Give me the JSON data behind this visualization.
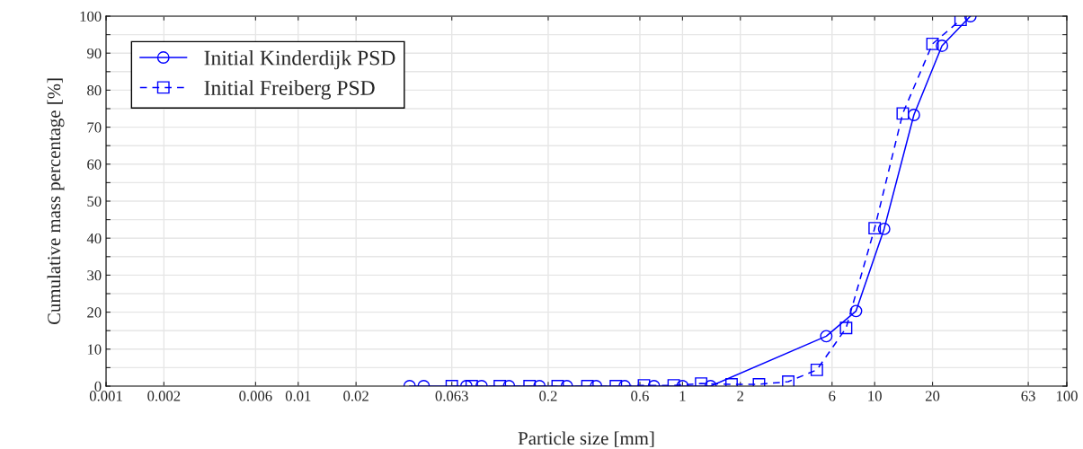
{
  "chart_data": {
    "type": "line",
    "xlabel": "Particle size [mm]",
    "ylabel": "Cumulative mass percentage [%]",
    "log": "x",
    "grid": true,
    "legend": "top left",
    "xlim": [
      0.001,
      100
    ],
    "xticks": [
      0.001,
      0.002,
      0.006,
      0.01,
      0.02,
      0.063,
      0.2,
      0.6,
      1,
      2,
      6,
      10,
      20,
      63,
      100
    ],
    "ylim": [
      0,
      100
    ],
    "yticks": [
      0,
      {
        "value": 5,
        "label": null
      },
      10,
      {
        "value": 15,
        "label": null
      },
      20,
      {
        "value": 25,
        "label": null
      },
      30,
      {
        "value": 35,
        "label": null
      },
      40,
      {
        "value": 45,
        "label": null
      },
      50,
      {
        "value": 55,
        "label": null
      },
      60,
      {
        "value": 65,
        "label": null
      },
      70,
      {
        "value": 75,
        "label": null
      },
      80,
      {
        "value": 85,
        "label": null
      },
      90,
      {
        "value": 95,
        "label": null
      },
      100
    ],
    "series": [
      {
        "name": "Initial Kinderdijk PSD",
        "color": "#0000ff",
        "marker": "circle",
        "line_style": "solid",
        "x": [
          0.038,
          0.045,
          0.075,
          0.09,
          0.125,
          0.18,
          0.25,
          0.355,
          0.5,
          0.71,
          1,
          1.4,
          5.6,
          8,
          11.2,
          16,
          22.4,
          31.5
        ],
        "values": [
          0,
          0,
          0,
          0,
          0,
          0,
          0,
          0,
          0,
          0,
          0,
          0,
          13.5,
          20.3,
          42.5,
          73.3,
          92,
          100
        ]
      },
      {
        "name": "Initial Freiberg PSD",
        "color": "#0000ff",
        "marker": "square",
        "line_style": "dashed",
        "x": [
          0.063,
          0.08,
          0.112,
          0.16,
          0.224,
          0.32,
          0.45,
          0.63,
          0.9,
          1.25,
          1.8,
          2.5,
          3.55,
          5,
          7.1,
          10,
          14,
          20,
          28
        ],
        "values": [
          0,
          0,
          0,
          0,
          0,
          0,
          0,
          0.2,
          0.2,
          0.7,
          0.5,
          0.5,
          1.2,
          4.4,
          15.7,
          42.7,
          73.7,
          92.5,
          99
        ]
      }
    ]
  }
}
